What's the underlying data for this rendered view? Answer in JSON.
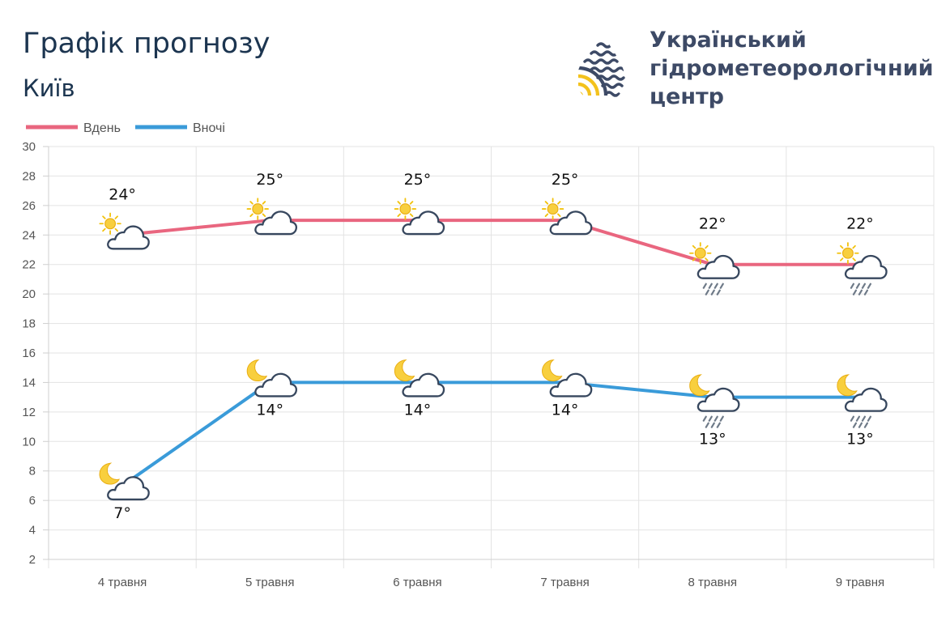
{
  "header": {
    "title": "Графік прогнозу",
    "city": "Київ"
  },
  "logo": {
    "line1": "Український",
    "line2": "гідрометеорологічний",
    "line3": "центр"
  },
  "colors": {
    "day": "#e9667f",
    "night": "#3a9bd9",
    "title": "#1c3550",
    "logo_text": "#3d4a66",
    "logo_yellow": "#f3c21d"
  },
  "chart_data": {
    "type": "line",
    "categories": [
      "4 травня",
      "5 травня",
      "6 травня",
      "7 травня",
      "8 травня",
      "9 травня"
    ],
    "ylim": [
      2,
      30
    ],
    "yticks": [
      2,
      4,
      6,
      8,
      10,
      12,
      14,
      16,
      18,
      20,
      22,
      24,
      26,
      28,
      30
    ],
    "grid": true,
    "legend_position": "top-left",
    "series": [
      {
        "name": "Вдень",
        "color": "#e9667f",
        "values": [
          24,
          25,
          25,
          25,
          22,
          22
        ],
        "labels": [
          "24°",
          "25°",
          "25°",
          "25°",
          "22°",
          "22°"
        ],
        "icons": [
          "sun-cloud-icon",
          "sun-cloud-icon",
          "sun-cloud-icon",
          "sun-cloud-icon",
          "sun-cloud-rain-icon",
          "sun-cloud-rain-icon"
        ]
      },
      {
        "name": "Вночі",
        "color": "#3a9bd9",
        "values": [
          7,
          14,
          14,
          14,
          13,
          13
        ],
        "labels": [
          "7°",
          "14°",
          "14°",
          "14°",
          "13°",
          "13°"
        ],
        "icons": [
          "moon-cloud-icon",
          "moon-cloud-icon",
          "moon-cloud-icon",
          "moon-cloud-icon",
          "moon-cloud-rain-icon",
          "moon-cloud-rain-icon"
        ]
      }
    ]
  }
}
